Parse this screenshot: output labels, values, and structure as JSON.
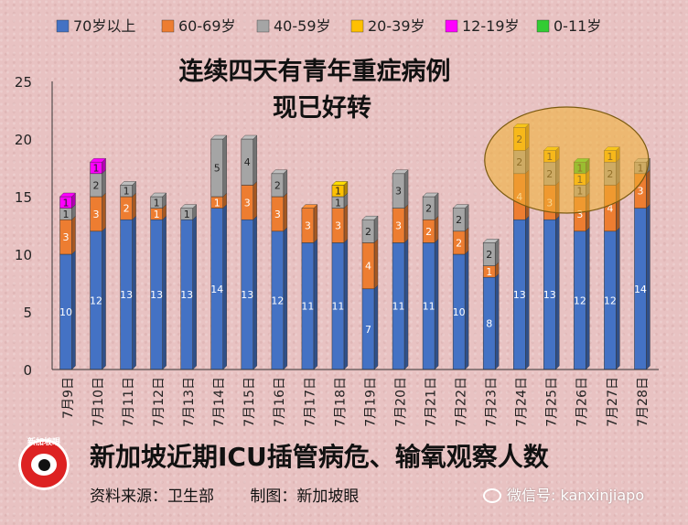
{
  "chart_data": {
    "type": "bar",
    "stacked": true,
    "title_lines": [
      "连续四天有青年重症病例",
      "现已好转"
    ],
    "categories": [
      "7月9日",
      "7月10日",
      "7月11日",
      "7月12日",
      "7月13日",
      "7月14日",
      "7月15日",
      "7月16日",
      "7月17日",
      "7月18日",
      "7月19日",
      "7月20日",
      "7月21日",
      "7月22日",
      "7月23日",
      "7月24日",
      "7月25日",
      "7月26日",
      "7月27日",
      "7月28日"
    ],
    "ylim": [
      0,
      25
    ],
    "yticks": [
      0,
      5,
      10,
      15,
      20,
      25
    ],
    "grid": false,
    "legend_position": "top",
    "series": [
      {
        "name": "70岁以上",
        "color": "#4472c4",
        "label_color": "#ffffff",
        "values": [
          10,
          12,
          13,
          13,
          13,
          14,
          13,
          12,
          11,
          11,
          7,
          11,
          11,
          10,
          8,
          13,
          13,
          12,
          12,
          14
        ]
      },
      {
        "name": "60-69岁",
        "color": "#ed7d31",
        "label_color": "#ffffff",
        "values": [
          3,
          3,
          2,
          1,
          0,
          1,
          3,
          3,
          3,
          3,
          4,
          3,
          2,
          2,
          1,
          4,
          3,
          3,
          4,
          3
        ]
      },
      {
        "name": "40-59岁",
        "color": "#a5a5a5",
        "label_color": "#222222",
        "values": [
          1,
          2,
          1,
          1,
          1,
          5,
          4,
          2,
          0,
          1,
          2,
          3,
          2,
          2,
          2,
          2,
          2,
          1,
          2,
          1
        ]
      },
      {
        "name": "20-39岁",
        "color": "#ffc000",
        "label_color": "#222222",
        "values": [
          0,
          0,
          0,
          0,
          0,
          0,
          0,
          0,
          0,
          1,
          0,
          0,
          0,
          0,
          0,
          2,
          1,
          1,
          1,
          0
        ]
      },
      {
        "name": "12-19岁",
        "color": "#ff00ff",
        "label_color": "#222222",
        "values": [
          1,
          1,
          0,
          0,
          0,
          0,
          0,
          0,
          0,
          0,
          0,
          0,
          0,
          0,
          0,
          0,
          0,
          0,
          0,
          0
        ]
      },
      {
        "name": "0-11岁",
        "color": "#33cc33",
        "label_color": "#222222",
        "values": [
          0,
          0,
          0,
          0,
          0,
          0,
          0,
          0,
          0,
          0,
          0,
          0,
          0,
          0,
          0,
          0,
          0,
          1,
          0,
          0
        ]
      }
    ],
    "highlight": {
      "from_category": "7月24日",
      "to_category": "7月27日",
      "color": "#f0b030"
    }
  },
  "footer": {
    "title": "新加坡近期ICU插管病危、输氧观察人数",
    "source": "资料来源：卫生部",
    "maker": "制图：新加坡眼",
    "wechat": "微信号: kanxinjiapo",
    "logo_text": "新加坡眼"
  }
}
